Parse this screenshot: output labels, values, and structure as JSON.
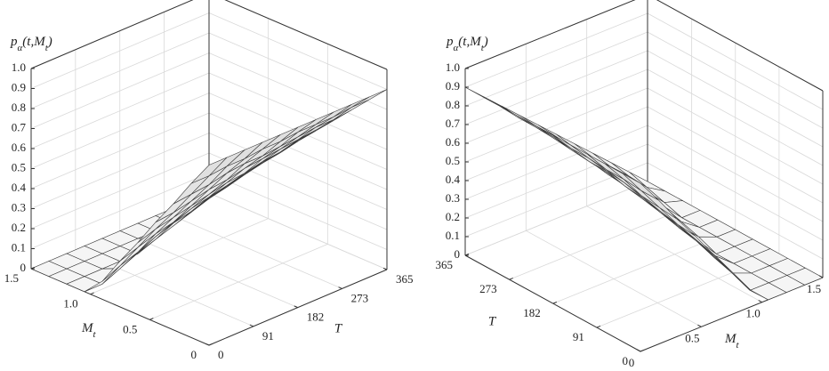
{
  "chart_data": [
    {
      "type": "surface",
      "x": [
        0,
        36.5,
        73,
        109.5,
        146,
        182.5,
        219,
        255.5,
        292,
        328.5,
        365
      ],
      "y": [
        0,
        0.15,
        0.3,
        0.45,
        0.6,
        0.75,
        0.9,
        1.05,
        1.2,
        1.35,
        1.5
      ],
      "z": [
        [
          0.9,
          0.77,
          0.63,
          0.5,
          0.36,
          0.23,
          0.09,
          0,
          0,
          0,
          0
        ],
        [
          0.9,
          0.77,
          0.64,
          0.51,
          0.39,
          0.26,
          0.13,
          0,
          0,
          0,
          0
        ],
        [
          0.9,
          0.78,
          0.65,
          0.53,
          0.41,
          0.29,
          0.16,
          0.04,
          0,
          0,
          0
        ],
        [
          0.9,
          0.78,
          0.67,
          0.55,
          0.43,
          0.31,
          0.2,
          0.08,
          0,
          0,
          0
        ],
        [
          0.9,
          0.79,
          0.68,
          0.56,
          0.45,
          0.34,
          0.23,
          0.11,
          0,
          0,
          0
        ],
        [
          0.9,
          0.79,
          0.68,
          0.58,
          0.47,
          0.36,
          0.25,
          0.14,
          0.04,
          0,
          0
        ],
        [
          0.9,
          0.8,
          0.69,
          0.59,
          0.48,
          0.38,
          0.28,
          0.17,
          0.07,
          0,
          0
        ],
        [
          0.9,
          0.8,
          0.7,
          0.6,
          0.5,
          0.4,
          0.3,
          0.2,
          0.1,
          0,
          0
        ],
        [
          0.9,
          0.8,
          0.71,
          0.61,
          0.51,
          0.42,
          0.32,
          0.22,
          0.13,
          0.03,
          0
        ],
        [
          0.9,
          0.81,
          0.71,
          0.62,
          0.53,
          0.43,
          0.34,
          0.25,
          0.16,
          0.06,
          0
        ],
        [
          0.9,
          0.81,
          0.72,
          0.63,
          0.54,
          0.45,
          0.36,
          0.27,
          0.18,
          0.09,
          0
        ]
      ],
      "xlim": [
        0,
        365
      ],
      "ylim": [
        0,
        1.5
      ],
      "zlim": [
        0,
        1
      ],
      "xticks": [
        0,
        91,
        182,
        273,
        365
      ],
      "yticks": [
        0,
        0.5,
        {
          "value": 1,
          "label": "1.0"
        },
        1.5
      ],
      "zticks": [
        0,
        0.1,
        0.2,
        0.3,
        0.4,
        0.5,
        0.6,
        0.7,
        0.8,
        0.9,
        {
          "value": 1,
          "label": "1.0"
        }
      ],
      "xlabel": "T",
      "ylabel": [
        "M",
        "t"
      ],
      "zlabel": [
        "p",
        "α",
        "(t,M",
        "t",
        ")"
      ],
      "grid": true
    },
    {
      "type": "surface",
      "x": [
        0,
        36.5,
        73,
        109.5,
        146,
        182.5,
        219,
        255.5,
        292,
        328.5,
        365
      ],
      "y": [
        0,
        0.15,
        0.3,
        0.45,
        0.6,
        0.75,
        0.9,
        1.05,
        1.2,
        1.35,
        1.5
      ],
      "z": [
        [
          0.9,
          0.77,
          0.63,
          0.5,
          0.36,
          0.23,
          0.09,
          0,
          0,
          0,
          0
        ],
        [
          0.9,
          0.77,
          0.64,
          0.51,
          0.39,
          0.26,
          0.13,
          0,
          0,
          0,
          0
        ],
        [
          0.9,
          0.78,
          0.65,
          0.53,
          0.41,
          0.29,
          0.16,
          0.04,
          0,
          0,
          0
        ],
        [
          0.9,
          0.78,
          0.67,
          0.55,
          0.43,
          0.31,
          0.2,
          0.08,
          0,
          0,
          0
        ],
        [
          0.9,
          0.79,
          0.68,
          0.56,
          0.45,
          0.34,
          0.23,
          0.11,
          0,
          0,
          0
        ],
        [
          0.9,
          0.79,
          0.68,
          0.58,
          0.47,
          0.36,
          0.25,
          0.14,
          0.04,
          0,
          0
        ],
        [
          0.9,
          0.8,
          0.69,
          0.59,
          0.48,
          0.38,
          0.28,
          0.17,
          0.07,
          0,
          0
        ],
        [
          0.9,
          0.8,
          0.7,
          0.6,
          0.5,
          0.4,
          0.3,
          0.2,
          0.1,
          0,
          0
        ],
        [
          0.9,
          0.8,
          0.71,
          0.61,
          0.51,
          0.42,
          0.32,
          0.22,
          0.13,
          0.03,
          0
        ],
        [
          0.9,
          0.81,
          0.71,
          0.62,
          0.53,
          0.43,
          0.34,
          0.25,
          0.16,
          0.06,
          0
        ],
        [
          0.9,
          0.81,
          0.72,
          0.63,
          0.54,
          0.45,
          0.36,
          0.27,
          0.18,
          0.09,
          0
        ]
      ],
      "xlim": [
        0,
        365
      ],
      "ylim": [
        0,
        1.5
      ],
      "zlim": [
        0,
        1
      ],
      "xticks": [
        0,
        91,
        182,
        273,
        365
      ],
      "yticks": [
        0,
        0.5,
        {
          "value": 1,
          "label": "1.0"
        },
        1.5
      ],
      "zticks": [
        0,
        0.1,
        0.2,
        0.3,
        0.4,
        0.5,
        0.6,
        0.7,
        0.8,
        0.9,
        {
          "value": 1,
          "label": "1.0"
        }
      ],
      "xlabel": "T",
      "ylabel": [
        "M",
        "t"
      ],
      "zlabel": [
        "p",
        "α",
        "(t,M",
        "t",
        ")"
      ],
      "grid": true
    }
  ]
}
